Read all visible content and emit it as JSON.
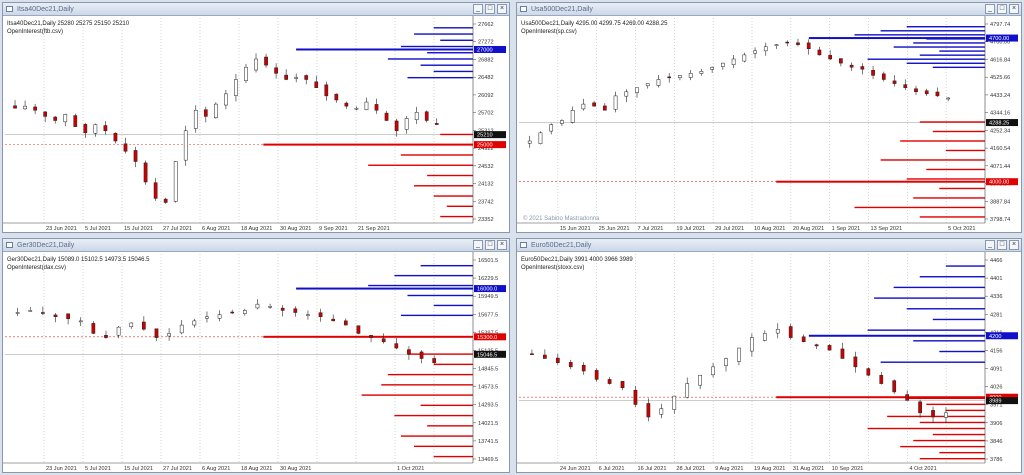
{
  "colors": {
    "bull": "#ffffff",
    "bear": "#cc0000",
    "blueBar": "#1010c8",
    "redBar": "#e00000",
    "grid": "#888888",
    "bg": "#ffffff"
  },
  "windows": [
    {
      "title": "Itsa40Dec21,Daily",
      "symbol_line": "Itsa40Dec21,Daily  25280 25275 25150 25210",
      "indicator": "OpenInterest(ftb.csv)",
      "copyright": "",
      "price_labels": [
        "27662",
        "27272",
        "26882",
        "26482",
        "26092",
        "25702",
        "25312",
        "24922",
        "24532",
        "24132",
        "23742",
        "23352"
      ],
      "date_labels": [
        "",
        "23 Jun 2021",
        "5 Jul 2021",
        "15 Jul 2021",
        "27 Jul 2021",
        "6 Aug 2021",
        "18 Aug 2021",
        "30 Aug 2021",
        "9 Sep 2021",
        "21 Sep 2021",
        "",
        ""
      ],
      "price_min": 23352,
      "price_max": 27662,
      "highlight_blue": "27000",
      "highlight_red": "25000",
      "highlight_black": "25210",
      "blue_level": 27000,
      "red_level": 25000,
      "current": 25210
    },
    {
      "title": "Usa500Dec21,Daily",
      "symbol_line": "Usa500Dec21,Daily  4295.00 4299.75 4269.00 4288.25",
      "indicator": "OpenInterest(sp.csv)",
      "copyright": "© 2021 Sabino Mastradonna",
      "price_labels": [
        "4797.74",
        "4700.00",
        "4616.84",
        "4525.66",
        "4433.24",
        "4344.16",
        "4252.34",
        "4160.54",
        "4071.44",
        "3979.84",
        "3887.84",
        "3798.74"
      ],
      "date_labels": [
        "",
        "15 Jun 2021",
        "25 Jun 2021",
        "7 Jul 2021",
        "19 Jul 2021",
        "29 Jul 2021",
        "10 Aug 2021",
        "20 Aug 2021",
        "1 Sep 2021",
        "13 Sep 2021",
        "",
        "5 Oct 2021"
      ],
      "price_min": 3798.74,
      "price_max": 4797.74,
      "highlight_blue": "4700.00",
      "highlight_red": "4000.00",
      "highlight_black": "4288.25",
      "blue_level": 4700,
      "red_level": 4000,
      "current": 4288.25
    },
    {
      "title": "Ger30Dec21,Daily",
      "symbol_line": "Ger30Dec21,Daily  15089.0 15102.5 14973.5 15046.5",
      "indicator": "OpenInterest(dax.csv)",
      "copyright": "",
      "price_labels": [
        "16501.5",
        "16229.5",
        "15949.5",
        "15677.5",
        "15397.5",
        "15125.5",
        "14845.5",
        "14573.5",
        "14293.5",
        "14021.5",
        "13741.5",
        "13469.5"
      ],
      "date_labels": [
        "",
        "23 Jun 2021",
        "5 Jul 2021",
        "15 Jul 2021",
        "27 Jul 2021",
        "6 Aug 2021",
        "18 Aug 2021",
        "30 Aug 2021",
        "",
        "",
        "1 Oct 2021",
        ""
      ],
      "price_min": 13469.5,
      "price_max": 16501.5,
      "highlight_blue": "16000.0",
      "highlight_red": "15300.0",
      "highlight_black": "15046.5",
      "blue_level": 16000,
      "red_level": 15300,
      "current": 15046.5
    },
    {
      "title": "Euro50Dec21,Daily",
      "symbol_line": "Euro50Dec21,Daily  3991 4000 3966 3989",
      "indicator": "OpenInterest(stoxx.csv)",
      "copyright": "",
      "price_labels": [
        "4466",
        "4401",
        "4336",
        "4281",
        "4216",
        "4156",
        "4091",
        "4026",
        "3971",
        "3906",
        "3846",
        "3786"
      ],
      "date_labels": [
        "",
        "24 Jun 2021",
        "6 Jul 2021",
        "16 Jul 2021",
        "28 Jul 2021",
        "9 Aug 2021",
        "19 Aug 2021",
        "31 Aug 2021",
        "10 Sep 2021",
        "",
        "4 Oct 2021",
        ""
      ],
      "price_min": 3786,
      "price_max": 4466,
      "highlight_blue": "4200",
      "highlight_red": "4000",
      "highlight_black": "3989",
      "blue_level": 4200,
      "red_level": 4000,
      "current": 3989
    }
  ]
}
